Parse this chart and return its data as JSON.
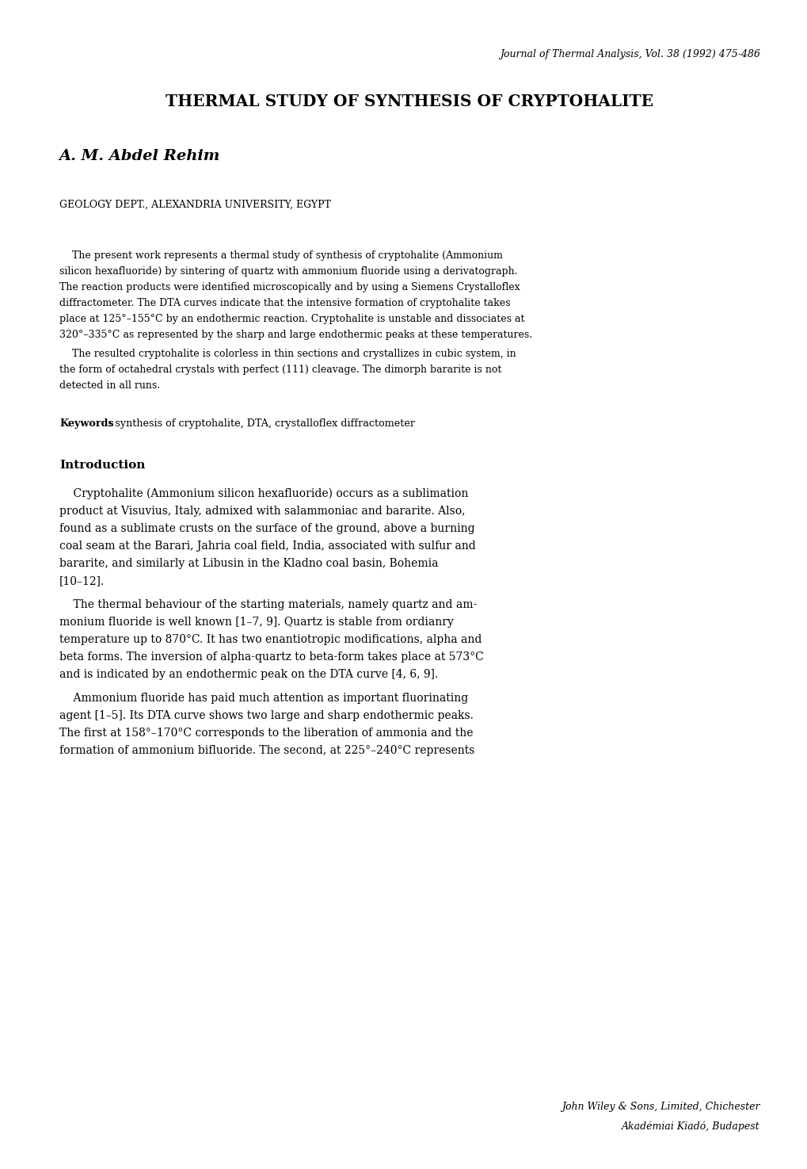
{
  "background_color": "#ffffff",
  "text_color": "#000000",
  "journal_header": "Journal of Thermal Analysis, Vol. 38 (1992) 475-486",
  "title": "THERMAL STUDY OF SYNTHESIS OF CRYPTOHALITE",
  "author": "A. M. Abdel Rehim",
  "affiliation": "GEOLOGY DEPT., ALEXANDRIA UNIVERSITY, EGYPT",
  "keywords_bold": "Keywords",
  "keywords_rest": ": synthesis of cryptohalite, DTA, crystalloflex diffractometer",
  "section_intro": "Introduction",
  "footer_line1": "John Wiley & Sons, Limited, Chichester",
  "footer_line2": "Akadémiai Kiadó, Budapest",
  "abstract_lines": [
    "    The present work represents a thermal study of synthesis of cryptohalite (Ammonium",
    "silicon hexafluoride) by sintering of quartz with ammonium fluoride using a derivatograph.",
    "The reaction products were identified microscopically and by using a Siemens Crystalloflex",
    "diffractometer. The DTA curves indicate that the intensive formation of cryptohalite takes",
    "place at 125°–155°C by an endothermic reaction. Cryptohalite is unstable and dissociates at",
    "320°–335°C as represented by the sharp and large endothermic peaks at these temperatures.",
    "    The resulted cryptohalite is colorless in thin sections and crystallizes in cubic system, in",
    "the form of octahedral crystals with perfect (111) cleavage. The dimorph bararite is not",
    "detected in all runs."
  ],
  "intro1_lines": [
    "    Cryptohalite (Ammonium silicon hexafluoride) occurs as a sublimation",
    "product at Visuvius, Italy, admixed with salammoniac and bararite. Also,",
    "found as a sublimate crusts on the surface of the ground, above a burning",
    "coal seam at the Barari, Jahria coal field, India, associated with sulfur and",
    "bararite, and similarly at Libusin in the Kladno coal basin, Bohemia",
    "[10–12]."
  ],
  "intro2_lines": [
    "    The thermal behaviour of the starting materials, namely quartz and am-",
    "monium fluoride is well known [1–7, 9]. Quartz is stable from ordianry",
    "temperature up to 870°C. It has two enantiotropic modifications, alpha and",
    "beta forms. The inversion of alpha-quartz to beta-form takes place at 573°C",
    "and is indicated by an endothermic peak on the DTA curve [4, 6, 9]."
  ],
  "intro3_lines": [
    "    Ammonium fluoride has paid much attention as important fluorinating",
    "agent [1–5]. Its DTA curve shows two large and sharp endothermic peaks.",
    "The first at 158°–170°C corresponds to the liberation of ammonia and the",
    "formation of ammonium bifluoride. The second, at 225°–240°C represents"
  ]
}
